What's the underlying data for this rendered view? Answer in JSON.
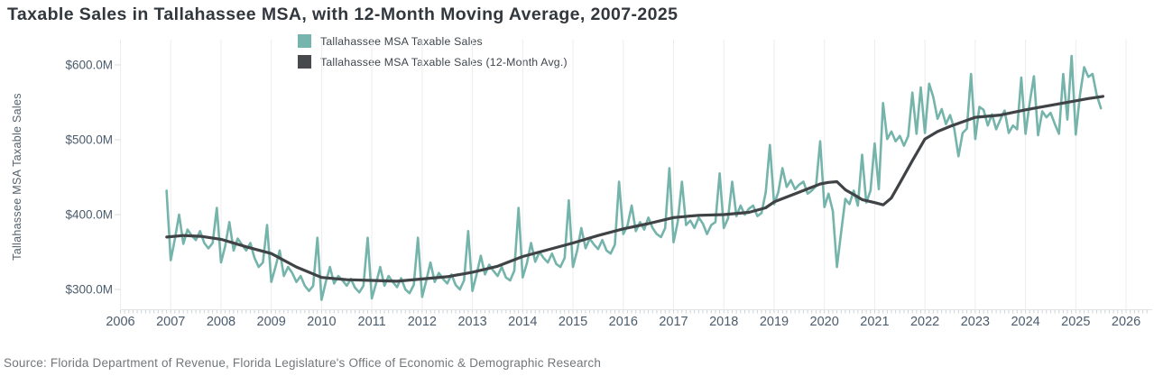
{
  "header": {
    "title": "Taxable Sales in Tallahassee MSA, with 12-Month Moving Average, 2007-2025"
  },
  "legend": {
    "items": [
      {
        "label": "Tallahassee MSA Taxable Sales",
        "color": "#76b5ad"
      },
      {
        "label": "Tallahassee MSA Taxable Sales (12-Month Avg.)",
        "color": "#47494c"
      }
    ]
  },
  "axes": {
    "y_title": "Tallahassee MSA Taxable Sales",
    "y_ticks": [
      {
        "label": "$600.0M",
        "value": 600
      },
      {
        "label": "$500.0M",
        "value": 500
      },
      {
        "label": "$400.0M",
        "value": 400
      },
      {
        "label": "$300.0M",
        "value": 300
      }
    ],
    "x_ticks": [
      "2006",
      "2007",
      "2008",
      "2009",
      "2010",
      "2011",
      "2012",
      "2013",
      "2014",
      "2015",
      "2016",
      "2017",
      "2018",
      "2019",
      "2020",
      "2021",
      "2022",
      "2023",
      "2024",
      "2025",
      "2026"
    ]
  },
  "source": "Source: Florida Department of Revenue, Florida Legislature's Office of Economic & Demographic Research",
  "colors": {
    "background": "#ffffff",
    "series_monthly": "#74b4ab",
    "series_average": "#404346",
    "gridline": "#ededed",
    "axis_line": "#dfe3e6",
    "minor_tick": "#ccd4da",
    "tick_label": "#4b5c6d",
    "title_text": "#31373c",
    "source_text": "#73777b"
  },
  "chart_data": {
    "type": "line",
    "title": "Taxable Sales in Tallahassee MSA, with 12-Month Moving Average, 2007-2025",
    "xlabel": "",
    "ylabel": "Tallahassee MSA Taxable Sales",
    "y_unit": "USD millions",
    "xlim": [
      2006,
      2026.5
    ],
    "ylim": [
      255,
      640
    ],
    "y_axis_tick_values": [
      300,
      400,
      500,
      600
    ],
    "x_axis_tick_values": [
      2006,
      2007,
      2008,
      2009,
      2010,
      2011,
      2012,
      2013,
      2014,
      2015,
      2016,
      2017,
      2018,
      2019,
      2020,
      2021,
      2022,
      2023,
      2024,
      2025,
      2026
    ],
    "grid": "vertical-only",
    "legend_position": "top-center",
    "series": [
      {
        "name": "Tallahassee MSA Taxable Sales",
        "color": "#74b4ab",
        "frequency": "monthly",
        "start_year": 2006,
        "start_month": 12,
        "values": [
          432,
          339,
          368,
          400,
          361,
          380,
          372,
          366,
          378,
          362,
          355,
          362,
          409,
          336,
          358,
          390,
          352,
          368,
          360,
          352,
          362,
          342,
          330,
          336,
          386,
          310,
          330,
          352,
          318,
          330,
          322,
          310,
          318,
          305,
          298,
          305,
          369,
          286,
          310,
          330,
          308,
          318,
          312,
          305,
          314,
          302,
          296,
          305,
          369,
          288,
          308,
          330,
          305,
          318,
          310,
          303,
          315,
          300,
          295,
          306,
          369,
          290,
          312,
          336,
          310,
          322,
          314,
          308,
          320,
          306,
          300,
          312,
          378,
          298,
          320,
          345,
          320,
          333,
          325,
          318,
          330,
          316,
          312,
          325,
          409,
          316,
          335,
          362,
          337,
          350,
          342,
          336,
          348,
          334,
          330,
          342,
          419,
          330,
          352,
          382,
          355,
          368,
          360,
          354,
          366,
          352,
          348,
          360,
          444,
          374,
          385,
          412,
          378,
          390,
          380,
          396,
          382,
          374,
          370,
          382,
          462,
          363,
          390,
          444,
          386,
          392,
          382,
          396,
          388,
          374,
          386,
          390,
          455,
          382,
          395,
          444,
          398,
          412,
          400,
          408,
          412,
          398,
          402,
          430,
          493,
          414,
          430,
          462,
          437,
          446,
          434,
          440,
          444,
          428,
          432,
          438,
          498,
          410,
          428,
          405,
          330,
          377,
          421,
          414,
          432,
          412,
          480,
          416,
          432,
          495,
          434,
          549,
          501,
          511,
          498,
          505,
          492,
          505,
          563,
          508,
          570,
          509,
          575,
          557,
          528,
          541,
          521,
          533,
          515,
          478,
          509,
          515,
          588,
          501,
          544,
          540,
          519,
          534,
          514,
          527,
          539,
          509,
          519,
          514,
          583,
          508,
          549,
          585,
          506,
          538,
          530,
          536,
          521,
          508,
          588,
          527,
          612,
          507,
          560,
          597,
          584,
          588,
          560,
          542
        ]
      },
      {
        "name": "Tallahassee MSA Taxable Sales (12-Month Avg.)",
        "color": "#404346",
        "points": [
          [
            2006.92,
            370
          ],
          [
            2007.25,
            372
          ],
          [
            2007.6,
            371
          ],
          [
            2008.0,
            367
          ],
          [
            2008.5,
            357
          ],
          [
            2009.0,
            348
          ],
          [
            2009.5,
            330
          ],
          [
            2010.0,
            316
          ],
          [
            2010.5,
            313
          ],
          [
            2011.0,
            312
          ],
          [
            2011.5,
            311
          ],
          [
            2012.0,
            314
          ],
          [
            2012.5,
            317
          ],
          [
            2013.0,
            323
          ],
          [
            2013.5,
            331
          ],
          [
            2014.0,
            344
          ],
          [
            2014.5,
            353
          ],
          [
            2015.0,
            362
          ],
          [
            2015.5,
            372
          ],
          [
            2016.0,
            381
          ],
          [
            2016.5,
            388
          ],
          [
            2017.0,
            396
          ],
          [
            2017.5,
            399
          ],
          [
            2018.0,
            400
          ],
          [
            2018.5,
            403
          ],
          [
            2018.83,
            409
          ],
          [
            2019.0,
            417
          ],
          [
            2019.5,
            430
          ],
          [
            2019.92,
            441
          ],
          [
            2020.08,
            443
          ],
          [
            2020.25,
            444
          ],
          [
            2020.42,
            433
          ],
          [
            2020.58,
            427
          ],
          [
            2020.75,
            420
          ],
          [
            2021.0,
            416
          ],
          [
            2021.17,
            413
          ],
          [
            2021.33,
            422
          ],
          [
            2021.5,
            442
          ],
          [
            2021.75,
            472
          ],
          [
            2022.0,
            501
          ],
          [
            2022.25,
            511
          ],
          [
            2022.5,
            518
          ],
          [
            2022.75,
            524
          ],
          [
            2023.0,
            530
          ],
          [
            2023.5,
            533
          ],
          [
            2024.0,
            540
          ],
          [
            2024.5,
            546
          ],
          [
            2025.0,
            552
          ],
          [
            2025.25,
            555
          ],
          [
            2025.54,
            558
          ]
        ]
      }
    ]
  }
}
